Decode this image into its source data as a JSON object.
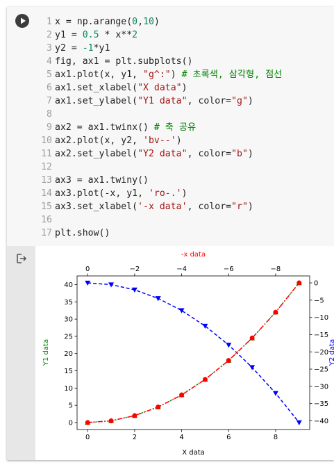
{
  "code_cell": {
    "lines": [
      {
        "n": "1",
        "tokens": [
          {
            "t": "x = np.arange(",
            "c": "txt"
          },
          {
            "t": "0",
            "c": "num"
          },
          {
            "t": ",",
            "c": "txt"
          },
          {
            "t": "10",
            "c": "num"
          },
          {
            "t": ")",
            "c": "txt"
          }
        ]
      },
      {
        "n": "2",
        "tokens": [
          {
            "t": "y1 = ",
            "c": "txt"
          },
          {
            "t": "0.5",
            "c": "num"
          },
          {
            "t": " * x**",
            "c": "txt"
          },
          {
            "t": "2",
            "c": "num"
          }
        ]
      },
      {
        "n": "3",
        "tokens": [
          {
            "t": "y2 = ",
            "c": "txt"
          },
          {
            "t": "-1",
            "c": "num"
          },
          {
            "t": "*y1",
            "c": "txt"
          }
        ]
      },
      {
        "n": "4",
        "tokens": [
          {
            "t": "fig, ax1 = plt.subplots()",
            "c": "txt"
          }
        ]
      },
      {
        "n": "5",
        "tokens": [
          {
            "t": "ax1.plot(x, y1, ",
            "c": "txt"
          },
          {
            "t": "\"g^:\"",
            "c": "str"
          },
          {
            "t": ") ",
            "c": "txt"
          },
          {
            "t": "# 초록색, 삼각형, 점선",
            "c": "cmt"
          }
        ]
      },
      {
        "n": "6",
        "tokens": [
          {
            "t": "ax1.set_xlabel(",
            "c": "txt"
          },
          {
            "t": "\"X data\"",
            "c": "str"
          },
          {
            "t": ")",
            "c": "txt"
          }
        ]
      },
      {
        "n": "7",
        "tokens": [
          {
            "t": "ax1.set_ylabel(",
            "c": "txt"
          },
          {
            "t": "\"Y1 data\"",
            "c": "str"
          },
          {
            "t": ", color=",
            "c": "txt"
          },
          {
            "t": "\"g\"",
            "c": "str"
          },
          {
            "t": ")",
            "c": "txt"
          }
        ]
      },
      {
        "n": "8",
        "tokens": []
      },
      {
        "n": "9",
        "tokens": [
          {
            "t": "ax2 = ax1.twinx() ",
            "c": "txt"
          },
          {
            "t": "# 축 공유",
            "c": "cmt"
          }
        ]
      },
      {
        "n": "10",
        "tokens": [
          {
            "t": "ax2.plot(x, y2, ",
            "c": "txt"
          },
          {
            "t": "'bv--'",
            "c": "str"
          },
          {
            "t": ")",
            "c": "txt"
          }
        ]
      },
      {
        "n": "11",
        "tokens": [
          {
            "t": "ax2.set_ylabel(",
            "c": "txt"
          },
          {
            "t": "\"Y2 data\"",
            "c": "str"
          },
          {
            "t": ", color=",
            "c": "txt"
          },
          {
            "t": "\"b\"",
            "c": "str"
          },
          {
            "t": ")",
            "c": "txt"
          }
        ]
      },
      {
        "n": "12",
        "tokens": []
      },
      {
        "n": "13",
        "tokens": [
          {
            "t": "ax3 = ax1.twiny()",
            "c": "txt"
          }
        ]
      },
      {
        "n": "14",
        "tokens": [
          {
            "t": "ax3.plot(-x, y1, ",
            "c": "txt"
          },
          {
            "t": "'ro-.'",
            "c": "str"
          },
          {
            "t": ")",
            "c": "txt"
          }
        ]
      },
      {
        "n": "15",
        "tokens": [
          {
            "t": "ax3.set_xlabel(",
            "c": "txt"
          },
          {
            "t": "'-x data'",
            "c": "str"
          },
          {
            "t": ", color=",
            "c": "txt"
          },
          {
            "t": "\"r\"",
            "c": "str"
          },
          {
            "t": ")",
            "c": "txt"
          }
        ]
      },
      {
        "n": "16",
        "tokens": []
      },
      {
        "n": "17",
        "tokens": [
          {
            "t": "plt.show()",
            "c": "txt"
          }
        ]
      }
    ],
    "colors": {
      "str": "#a31515",
      "num": "#098658",
      "cmt": "#008000",
      "txt": "#212121"
    }
  },
  "icons": {
    "run": "play-icon",
    "output": "output-redirect-icon"
  },
  "chart_data": {
    "type": "line",
    "x": [
      0,
      1,
      2,
      3,
      4,
      5,
      6,
      7,
      8,
      9
    ],
    "x_top": [
      0,
      -1,
      -2,
      -3,
      -4,
      -5,
      -6,
      -7,
      -8,
      -9
    ],
    "series": [
      {
        "axis": "ax1",
        "color": "#008000",
        "marker": "triangle-up",
        "linestyle": "dotted",
        "values": [
          0,
          0.5,
          2,
          4.5,
          8,
          12.5,
          18,
          24.5,
          32,
          40.5
        ]
      },
      {
        "axis": "ax2",
        "color": "#0000ff",
        "marker": "triangle-down",
        "linestyle": "dashed",
        "values": [
          0,
          -0.5,
          -2,
          -4.5,
          -8,
          -12.5,
          -18,
          -24.5,
          -32,
          -40.5
        ]
      },
      {
        "axis": "ax3",
        "color": "#ff0000",
        "marker": "circle",
        "linestyle": "dashdot",
        "values": [
          0,
          0.5,
          2,
          4.5,
          8,
          12.5,
          18,
          24.5,
          32,
          40.5
        ]
      }
    ],
    "xlabel": "X data",
    "ylabel": "Y1 data",
    "ylabel_color": "#008000",
    "y2label": "Y2 data",
    "y2label_color": "#0000ff",
    "x2label": "-x data",
    "x2label_color": "#ff0000",
    "xlim": [
      -0.45,
      9.45
    ],
    "x2lim": [
      0.45,
      -9.45
    ],
    "ylim": [
      -2.025,
      42.525
    ],
    "y2lim": [
      -42.525,
      2.025
    ],
    "xticks": [
      0,
      2,
      4,
      6,
      8
    ],
    "xtick_labels": [
      "0",
      "2",
      "4",
      "6",
      "8"
    ],
    "x2ticks": [
      -8,
      -6,
      -4,
      -2,
      0
    ],
    "x2tick_labels": [
      "−8",
      "−6",
      "−4",
      "−2",
      "0"
    ],
    "yticks": [
      0,
      5,
      10,
      15,
      20,
      25,
      30,
      35,
      40
    ],
    "ytick_labels": [
      "0",
      "5",
      "10",
      "15",
      "20",
      "25",
      "30",
      "35",
      "40"
    ],
    "y2ticks": [
      0,
      -5,
      -10,
      -15,
      -20,
      -25,
      -30,
      -35,
      -40
    ],
    "y2tick_labels": [
      "0",
      "−5",
      "−10",
      "−15",
      "−20",
      "−25",
      "−30",
      "−35",
      "−40"
    ],
    "grid": false
  }
}
